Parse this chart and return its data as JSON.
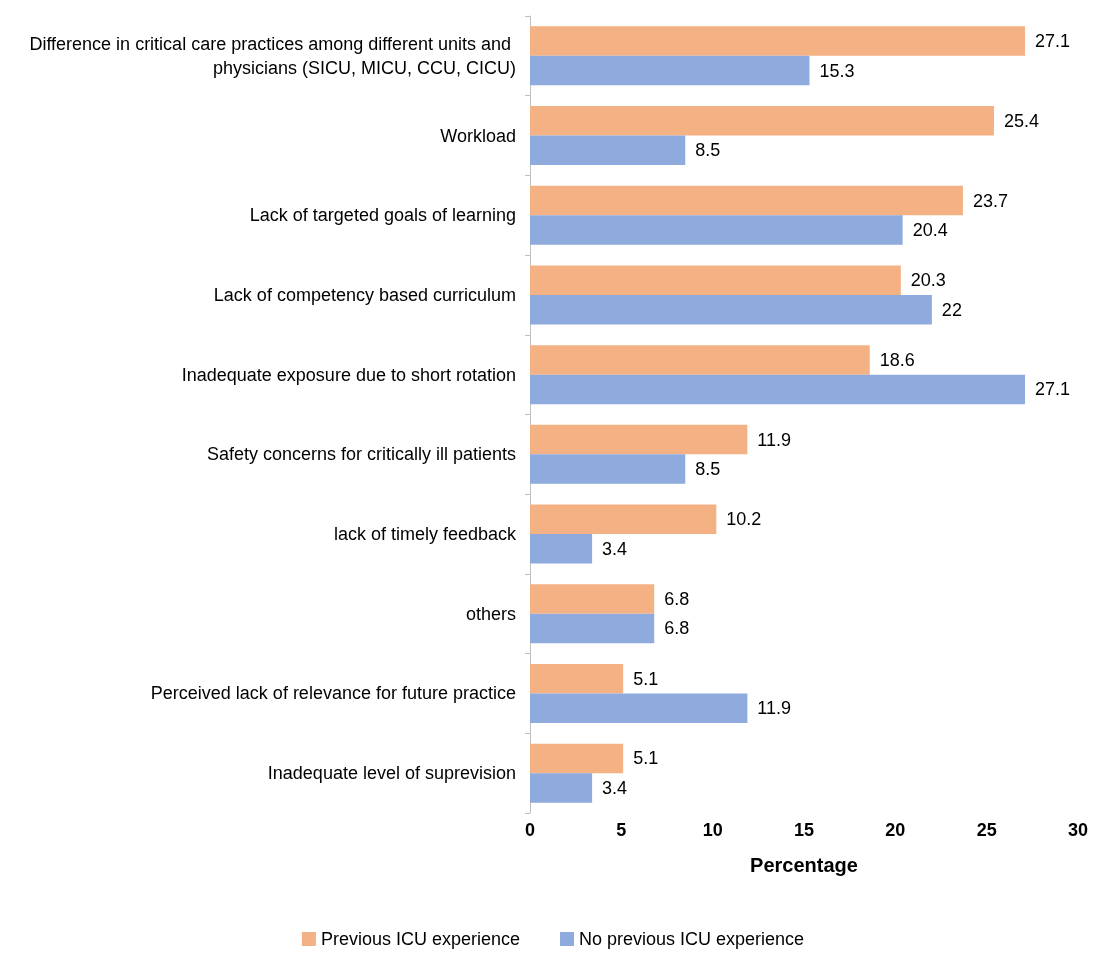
{
  "chart_data": {
    "type": "bar",
    "orientation": "horizontal",
    "xlabel": "Percentage",
    "categories": [
      "Difference in critical care practices among different units and physicians (SICU, MICU, CCU, CICU)",
      "Workload",
      "Lack of targeted goals of learning",
      "Lack of competency based curriculum",
      "Inadequate exposure due to short rotation",
      "Safety concerns for critically ill patients",
      "lack of timely feedback",
      "others",
      "Perceived lack of relevance for future practice",
      "Inadequate level of suprevision"
    ],
    "series": [
      {
        "name": "Previous ICU experience",
        "color": "#f4b183",
        "values": [
          27.1,
          25.4,
          23.7,
          20.3,
          18.6,
          11.9,
          10.2,
          6.8,
          5.1,
          5.1
        ]
      },
      {
        "name": "No previous ICU experience",
        "color": "#8faadc",
        "values": [
          15.3,
          8.5,
          20.4,
          22,
          27.1,
          8.5,
          3.4,
          6.8,
          11.9,
          3.4
        ]
      }
    ],
    "xlim": [
      0,
      30
    ],
    "xticks": [
      0,
      5,
      10,
      15,
      20,
      25,
      30
    ],
    "grid": false,
    "legend": "bottom",
    "data_labels": true
  }
}
